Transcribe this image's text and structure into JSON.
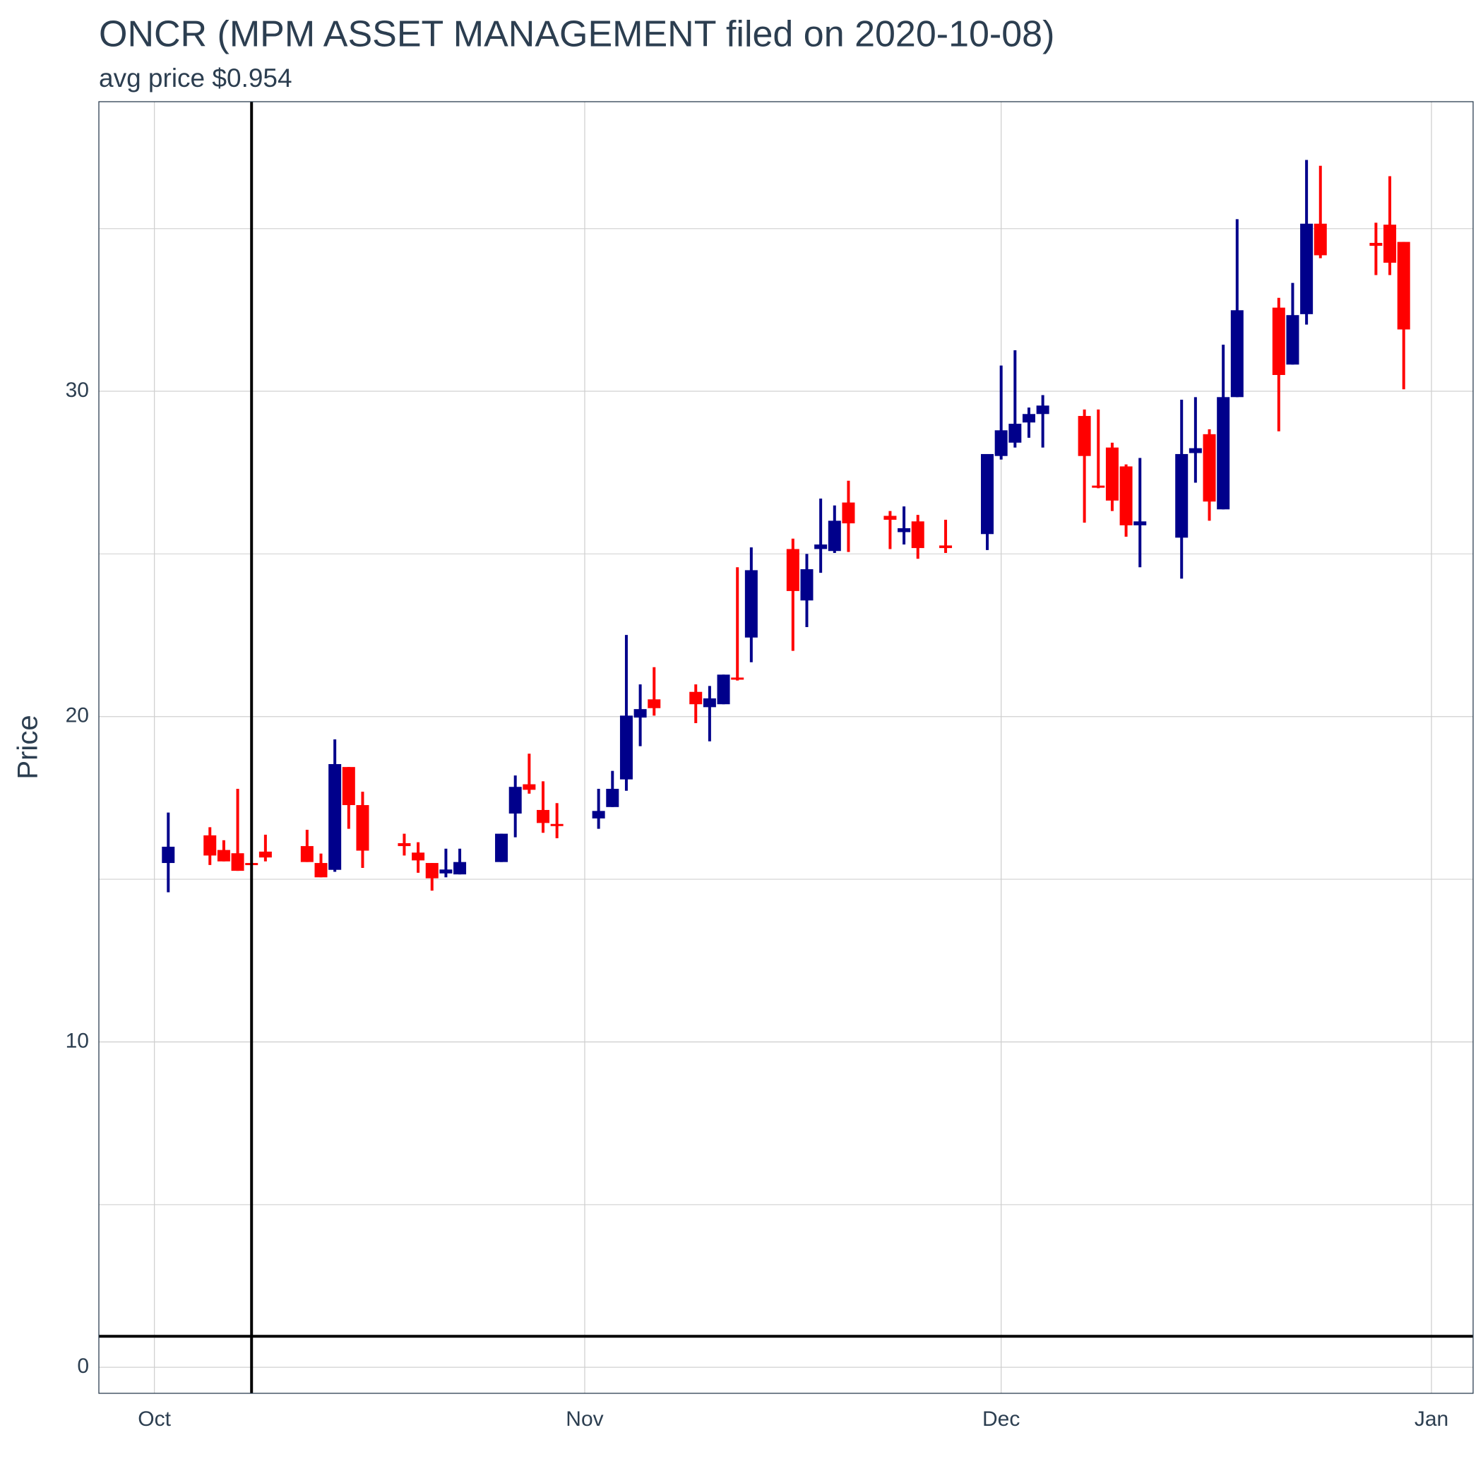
{
  "chart_data": {
    "type": "candlestick",
    "title": "ONCR (MPM ASSET MANAGEMENT filed on 2020-10-08)",
    "subtitle": "avg price $0.954",
    "y_label": "Price",
    "up_color": "#00008b",
    "down_color": "#ff0000",
    "x": [
      "2020-10-02",
      "2020-10-05",
      "2020-10-06",
      "2020-10-07",
      "2020-10-08",
      "2020-10-09",
      "2020-10-12",
      "2020-10-13",
      "2020-10-14",
      "2020-10-15",
      "2020-10-16",
      "2020-10-19",
      "2020-10-20",
      "2020-10-21",
      "2020-10-22",
      "2020-10-23",
      "2020-10-26",
      "2020-10-27",
      "2020-10-28",
      "2020-10-29",
      "2020-10-30",
      "2020-11-02",
      "2020-11-03",
      "2020-11-04",
      "2020-11-05",
      "2020-11-06",
      "2020-11-09",
      "2020-11-10",
      "2020-11-11",
      "2020-11-12",
      "2020-11-13",
      "2020-11-16",
      "2020-11-17",
      "2020-11-18",
      "2020-11-19",
      "2020-11-20",
      "2020-11-23",
      "2020-11-24",
      "2020-11-25",
      "2020-11-27",
      "2020-11-30",
      "2020-12-01",
      "2020-12-02",
      "2020-12-03",
      "2020-12-04",
      "2020-12-07",
      "2020-12-08",
      "2020-12-09",
      "2020-12-10",
      "2020-12-11",
      "2020-12-14",
      "2020-12-15",
      "2020-12-16",
      "2020-12-17",
      "2020-12-18",
      "2020-12-21",
      "2020-12-22",
      "2020-12-23",
      "2020-12-24",
      "2020-12-28",
      "2020-12-29",
      "2020-12-30"
    ],
    "open": [
      15.5,
      16.35,
      15.9,
      15.8,
      15.5,
      15.85,
      16.02,
      15.5,
      15.29,
      18.45,
      17.28,
      16.11,
      15.82,
      15.5,
      15.18,
      15.15,
      15.53,
      17.02,
      17.92,
      17.13,
      16.7,
      16.87,
      17.22,
      18.07,
      19.97,
      20.53,
      20.76,
      20.29,
      20.38,
      21.2,
      22.43,
      25.15,
      23.57,
      25.15,
      25.09,
      26.58,
      26.17,
      25.67,
      26.0,
      25.26,
      25.61,
      28.01,
      28.42,
      29.04,
      29.3,
      29.24,
      27.1,
      28.27,
      27.69,
      25.88,
      25.5,
      28.1,
      28.68,
      26.37,
      29.82,
      32.57,
      30.82,
      32.37,
      35.15,
      34.56,
      35.12,
      34.59
    ],
    "high": [
      17.05,
      16.6,
      16.2,
      17.78,
      15.5,
      16.37,
      16.52,
      15.79,
      19.3,
      18.45,
      17.69,
      16.4,
      16.14,
      15.5,
      15.94,
      15.94,
      16.4,
      18.19,
      18.86,
      18.01,
      17.34,
      17.78,
      18.33,
      22.51,
      20.99,
      21.52,
      20.99,
      20.94,
      21.29,
      24.59,
      25.2,
      25.47,
      25.0,
      26.7,
      26.49,
      27.25,
      26.32,
      26.46,
      26.2,
      26.05,
      28.07,
      30.79,
      31.26,
      29.5,
      29.88,
      29.44,
      29.44,
      28.42,
      27.75,
      27.95,
      29.74,
      29.82,
      28.83,
      31.43,
      35.29,
      32.87,
      33.33,
      37.11,
      36.93,
      35.18,
      36.61,
      34.59
    ],
    "low": [
      14.6,
      15.44,
      15.55,
      15.26,
      15.45,
      15.55,
      15.53,
      15.06,
      15.23,
      16.55,
      15.35,
      15.73,
      15.2,
      14.65,
      15.06,
      15.15,
      15.53,
      16.29,
      17.63,
      16.43,
      16.26,
      16.55,
      17.22,
      17.72,
      19.09,
      20.03,
      19.8,
      19.24,
      20.38,
      21.11,
      21.67,
      22.02,
      22.75,
      24.42,
      25.03,
      25.06,
      25.15,
      25.29,
      24.85,
      25.03,
      25.12,
      27.9,
      28.27,
      28.57,
      28.27,
      25.96,
      27.02,
      26.32,
      25.53,
      24.59,
      24.24,
      27.19,
      26.02,
      26.37,
      29.82,
      28.77,
      30.82,
      32.05,
      34.09,
      33.57,
      33.57,
      30.06
    ],
    "close": [
      16.0,
      15.73,
      15.55,
      15.26,
      15.45,
      15.67,
      15.53,
      15.06,
      18.54,
      17.28,
      15.88,
      16.02,
      15.58,
      15.03,
      15.3,
      15.53,
      16.4,
      17.84,
      17.75,
      16.73,
      16.64,
      17.1,
      17.78,
      20.03,
      20.23,
      20.26,
      20.38,
      20.56,
      21.29,
      21.15,
      24.5,
      23.86,
      24.53,
      25.29,
      26.02,
      25.94,
      26.05,
      25.79,
      25.18,
      25.18,
      28.07,
      28.8,
      29.0,
      29.3,
      29.56,
      28.01,
      27.05,
      26.64,
      25.88,
      26.0,
      28.07,
      28.25,
      26.61,
      29.82,
      32.49,
      30.5,
      32.34,
      35.15,
      34.18,
      34.47,
      33.95,
      31.9
    ],
    "vline": "2020-10-08",
    "hline": 0.954,
    "xlim": [
      "2020-09-27",
      "2021-01-04"
    ],
    "xticks": [
      {
        "value": "2020-10-01",
        "label": "Oct"
      },
      {
        "value": "2020-11-01",
        "label": "Nov"
      },
      {
        "value": "2020-12-01",
        "label": "Dec"
      },
      {
        "value": "2021-01-01",
        "label": "Jan"
      }
    ],
    "ylim": [
      -0.8,
      38.9
    ],
    "yticks": [
      0,
      10,
      20,
      30
    ],
    "minor_yticks": [
      5,
      15,
      25,
      35
    ],
    "grid": true
  }
}
